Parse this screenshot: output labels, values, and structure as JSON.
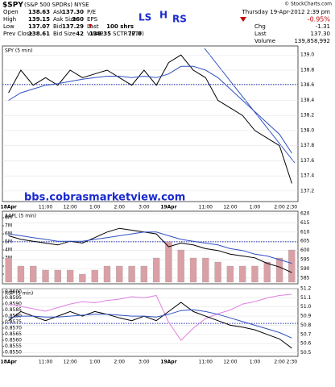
{
  "header": {
    "symbol": "$SPY",
    "name": "(S&P 500 SPDRs) NYSE",
    "credit": "© StockCharts.com",
    "quote": [
      [
        {
          "label": "Open",
          "value": "138.63"
        },
        {
          "label": "Ask",
          "value": "137.30"
        },
        {
          "label": "P/E"
        }
      ],
      [
        {
          "label": "High",
          "value": "139.15"
        },
        {
          "label": "Ask Size",
          "value": "360"
        },
        {
          "label": "EPS"
        }
      ],
      [
        {
          "label": "Low",
          "value": "137.07"
        },
        {
          "label": "Bid",
          "value": "137.29"
        },
        {
          "label": "Last",
          "value": "100 shrs"
        }
      ],
      [
        {
          "label": "Prev Close",
          "value": "138.61"
        },
        {
          "label": "Bid Size",
          "value": "42"
        },
        {
          "label": "VWAP",
          "value": "138.35"
        },
        {
          "label": "SCTR (ETF)",
          "value": "77.0"
        }
      ]
    ],
    "datetime": "Thursday 19-Apr-2012 2:39 pm",
    "change_pct": "-0.95%",
    "summary": [
      {
        "label": "Chg",
        "value": "-1.31"
      },
      {
        "label": "Last",
        "value": "137.30"
      },
      {
        "label": "Volume",
        "value": "139,858,992"
      }
    ]
  },
  "annotations": [
    "LS",
    "H",
    "RS"
  ],
  "watermark": "bbs.cobrasmarketview.com",
  "chart_data": [
    {
      "type": "line",
      "title": "SPY (5 min)",
      "categories": [
        "18Apr",
        null,
        null,
        "11:00",
        null,
        "12:00",
        null,
        "1:00",
        null,
        "2:00",
        null,
        "3:00",
        null,
        "19Apr",
        null,
        null,
        "11:00",
        null,
        "12:00",
        null,
        "1:00",
        null,
        "2:00",
        "2:30"
      ],
      "series": [
        {
          "color": "#000000",
          "values": [
            138.5,
            138.8,
            138.6,
            138.7,
            138.6,
            138.8,
            138.7,
            138.75,
            138.8,
            138.7,
            138.6,
            138.8,
            138.6,
            138.9,
            139.0,
            138.8,
            138.7,
            138.4,
            138.3,
            138.2,
            138.0,
            137.9,
            137.8,
            137.3
          ]
        },
        {
          "color": "#3050c0",
          "values": [
            138.4,
            138.5,
            138.55,
            138.6,
            138.62,
            138.65,
            138.68,
            138.7,
            138.72,
            138.72,
            138.7,
            138.72,
            138.7,
            138.75,
            138.85,
            138.85,
            138.8,
            138.7,
            138.55,
            138.4,
            138.25,
            138.1,
            137.95,
            137.7
          ]
        }
      ],
      "reference_line": 138.61,
      "ylim": [
        137.06,
        139.12
      ],
      "yticks": [
        137.2,
        137.4,
        137.6,
        137.8,
        {
          "value": 138,
          "label": "138.0"
        },
        138.2,
        138.4,
        138.6,
        138.8,
        {
          "value": 139,
          "label": "139.0"
        }
      ],
      "grid": true
    },
    {
      "type": "line",
      "title": "AAPL (5 min)",
      "series": [
        {
          "color": "#d9a0a6",
          "type": "bar",
          "axis": "y2",
          "values": [
            3000000,
            2000000,
            2000000,
            1500000,
            1500000,
            1500000,
            1000000,
            1500000,
            2000000,
            2000000,
            2000000,
            2000000,
            3000000,
            5000000,
            4000000,
            3000000,
            3000000,
            2500000,
            2000000,
            2000000,
            2000000,
            2500000,
            3000000,
            4000000
          ]
        },
        {
          "color": "#000000",
          "values": [
            608,
            606,
            605,
            604,
            603,
            605,
            604,
            607,
            610,
            612,
            611,
            610,
            609,
            602,
            604,
            603,
            601,
            600,
            598,
            597,
            596,
            593,
            591,
            588
          ]
        },
        {
          "color": "#3050c0",
          "values": [
            609,
            608,
            607,
            606,
            605,
            605,
            605,
            606,
            607,
            608,
            609,
            610,
            610,
            608,
            606,
            605,
            604,
            603,
            601,
            600,
            598,
            597,
            595,
            593
          ]
        }
      ],
      "reference_line": 604.7,
      "ylim": [
        581.9,
        621.3
      ],
      "yticks": [
        585,
        590,
        595,
        600,
        605,
        610,
        615,
        620
      ],
      "y2lim": [
        -200000,
        8800000
      ],
      "y2ticks": [
        {
          "value": 1000000,
          "label": "1M"
        },
        {
          "value": 2000000,
          "label": "2M"
        },
        {
          "value": 3000000,
          "label": "3M"
        },
        {
          "value": 4000000,
          "label": "4M"
        },
        {
          "value": 5000000,
          "label": "5M"
        },
        {
          "value": 6000000,
          "label": "6M"
        },
        {
          "value": 7000000,
          "label": "7M"
        },
        {
          "value": 8000000,
          "label": "8M"
        }
      ],
      "grid": true
    },
    {
      "type": "line",
      "title": "RSP (5 min)",
      "categories": [
        "18Apr",
        null,
        null,
        "11:00",
        null,
        "12:00",
        null,
        "1:00",
        null,
        "2:00",
        null,
        "3:00",
        null,
        "19Apr",
        null,
        null,
        "11:00",
        null,
        "12:00",
        null,
        "1:00",
        null,
        "2:00",
        "2:30"
      ],
      "series": [
        {
          "color": "#e080e0",
          "axis": "y2",
          "values": [
            0.859,
            0.8588,
            0.8586,
            0.8584,
            0.8587,
            0.859,
            0.8592,
            0.8591,
            0.8593,
            0.8594,
            0.8596,
            0.8595,
            0.8597,
            0.8575,
            0.856,
            0.857,
            0.8578,
            0.8582,
            0.8585,
            0.859,
            0.8592,
            0.8595,
            0.8597,
            0.8598
          ]
        },
        {
          "color": "#000000",
          "values": [
            50.85,
            50.95,
            50.9,
            50.85,
            50.9,
            50.95,
            50.9,
            50.95,
            50.92,
            50.88,
            50.85,
            50.9,
            50.85,
            50.95,
            51.05,
            50.95,
            50.9,
            50.85,
            50.8,
            50.78,
            50.75,
            50.7,
            50.65,
            50.55
          ]
        },
        {
          "color": "#3050c0",
          "values": [
            50.88,
            50.9,
            50.9,
            50.89,
            50.89,
            50.9,
            50.91,
            50.92,
            50.92,
            50.91,
            50.9,
            50.9,
            50.89,
            50.92,
            50.96,
            50.97,
            50.95,
            50.92,
            50.88,
            50.84,
            50.8,
            50.76,
            50.72,
            50.66
          ]
        }
      ],
      "reference_line": 50.82,
      "ylim": [
        50.46,
        51.2
      ],
      "yticks": [
        50.5,
        50.6,
        50.7,
        50.8,
        50.9,
        {
          "value": 51,
          "label": "51.0"
        },
        51.1,
        51.2
      ],
      "y2lim": [
        0.85467,
        0.86027
      ],
      "y2ticks": [
        {
          "value": 0.855,
          "label": "0.8550"
        },
        0.8555,
        {
          "value": 0.856,
          "label": "0.8560"
        },
        0.8565,
        {
          "value": 0.857,
          "label": "0.8570"
        },
        0.8575,
        {
          "value": 0.858,
          "label": "0.8580"
        },
        0.8585,
        {
          "value": 0.859,
          "label": "0.8590"
        },
        0.8595,
        {
          "value": 0.86,
          "label": "0.8600"
        }
      ],
      "grid": true
    }
  ]
}
